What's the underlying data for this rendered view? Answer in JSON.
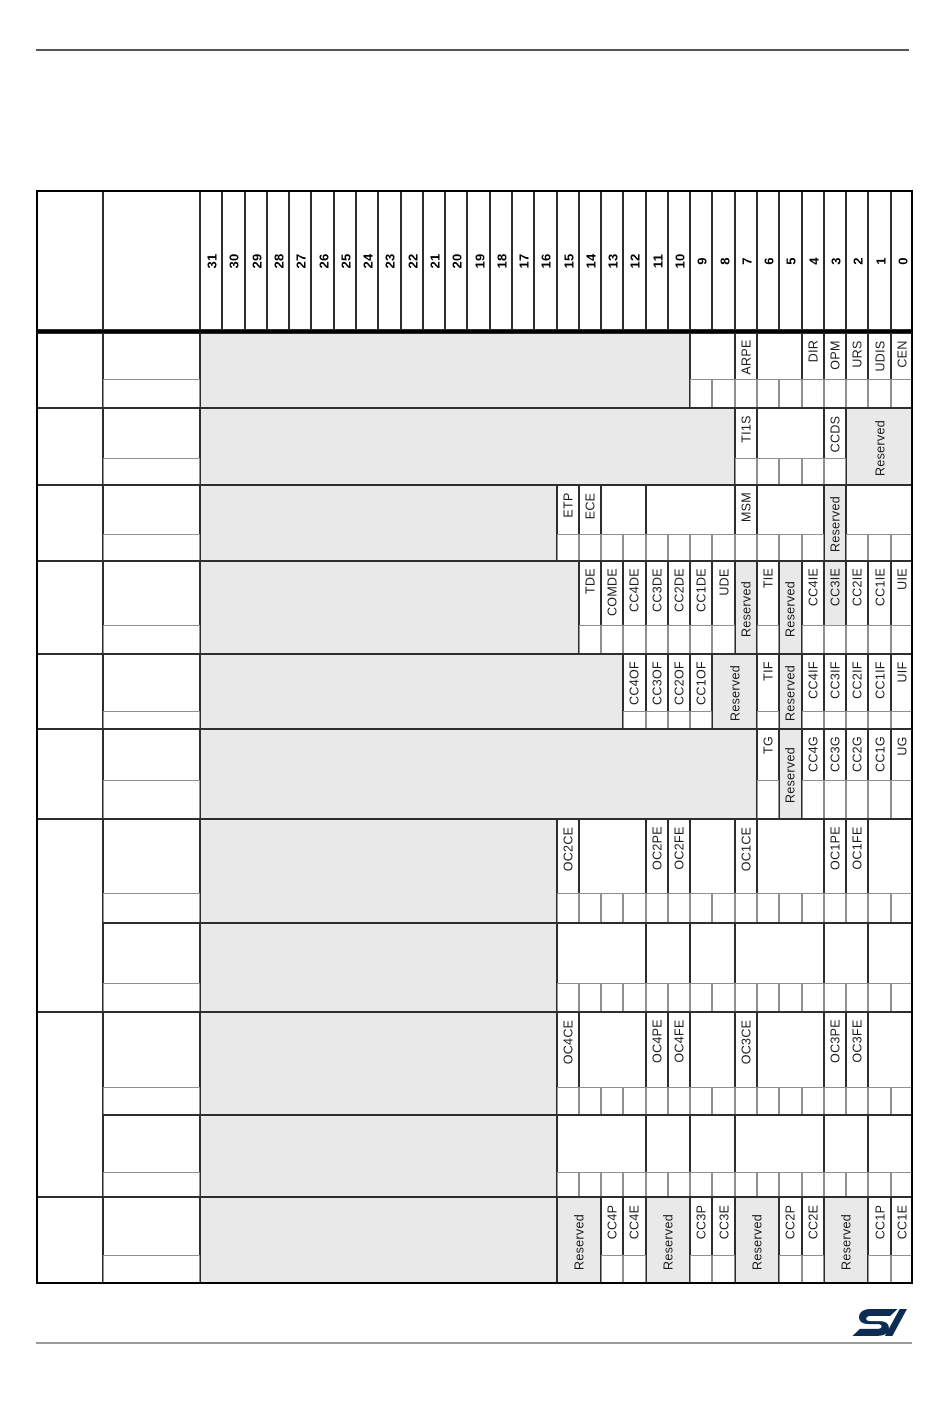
{
  "register_map": {
    "bit_header": [
      "31",
      "30",
      "29",
      "28",
      "27",
      "26",
      "25",
      "24",
      "23",
      "22",
      "21",
      "20",
      "19",
      "18",
      "17",
      "16",
      "15",
      "14",
      "13",
      "12",
      "11",
      "10",
      "9",
      "8",
      "7",
      "6",
      "5",
      "4",
      "3",
      "2",
      "1",
      "0"
    ],
    "registers": [
      {
        "fields": [
          {
            "bits": [
              31,
              10
            ],
            "label": "",
            "bg": "gray",
            "tall": true
          },
          {
            "bits": [
              9,
              8
            ],
            "label": ""
          },
          {
            "bits": [
              7,
              7
            ],
            "label": "ARPE"
          },
          {
            "bits": [
              6,
              5
            ],
            "label": ""
          },
          {
            "bits": [
              4,
              4
            ],
            "label": "DIR"
          },
          {
            "bits": [
              3,
              3
            ],
            "label": "OPM"
          },
          {
            "bits": [
              2,
              2
            ],
            "label": "URS"
          },
          {
            "bits": [
              1,
              1
            ],
            "label": "UDIS"
          },
          {
            "bits": [
              0,
              0
            ],
            "label": "CEN"
          }
        ]
      },
      {
        "fields": [
          {
            "bits": [
              31,
              8
            ],
            "label": "",
            "bg": "gray",
            "tall": true
          },
          {
            "bits": [
              7,
              7
            ],
            "label": "TI1S"
          },
          {
            "bits": [
              6,
              4
            ],
            "label": ""
          },
          {
            "bits": [
              3,
              3
            ],
            "label": "CCDS"
          },
          {
            "bits": [
              2,
              0
            ],
            "label": "Reserved",
            "bg": "gray",
            "tall": true
          }
        ]
      },
      {
        "fields": [
          {
            "bits": [
              31,
              16
            ],
            "label": "",
            "bg": "gray",
            "tall": true
          },
          {
            "bits": [
              15,
              15
            ],
            "label": "ETP"
          },
          {
            "bits": [
              14,
              14
            ],
            "label": "ECE"
          },
          {
            "bits": [
              13,
              12
            ],
            "label": ""
          },
          {
            "bits": [
              11,
              8
            ],
            "label": ""
          },
          {
            "bits": [
              7,
              7
            ],
            "label": "MSM"
          },
          {
            "bits": [
              6,
              4
            ],
            "label": ""
          },
          {
            "bits": [
              3,
              3
            ],
            "label": "Reserved",
            "bg": "gray",
            "tall": true
          },
          {
            "bits": [
              2,
              0
            ],
            "label": ""
          }
        ]
      },
      {
        "fields": [
          {
            "bits": [
              31,
              15
            ],
            "label": "",
            "bg": "gray",
            "tall": true
          },
          {
            "bits": [
              14,
              14
            ],
            "label": "TDE"
          },
          {
            "bits": [
              13,
              13
            ],
            "label": "COMDE"
          },
          {
            "bits": [
              12,
              12
            ],
            "label": "CC4DE"
          },
          {
            "bits": [
              11,
              11
            ],
            "label": "CC3DE"
          },
          {
            "bits": [
              10,
              10
            ],
            "label": "CC2DE"
          },
          {
            "bits": [
              9,
              9
            ],
            "label": "CC1DE"
          },
          {
            "bits": [
              8,
              8
            ],
            "label": "UDE"
          },
          {
            "bits": [
              7,
              7
            ],
            "label": "Reserved",
            "bg": "gray",
            "tall": true
          },
          {
            "bits": [
              6,
              6
            ],
            "label": "TIE"
          },
          {
            "bits": [
              5,
              5
            ],
            "label": "Reserved",
            "bg": "gray",
            "tall": true
          },
          {
            "bits": [
              4,
              4
            ],
            "label": "CC4IE"
          },
          {
            "bits": [
              3,
              3
            ],
            "label": "CC3IE",
            "bg": "gray"
          },
          {
            "bits": [
              2,
              2
            ],
            "label": "CC2IE"
          },
          {
            "bits": [
              1,
              1
            ],
            "label": "CC1IE"
          },
          {
            "bits": [
              0,
              0
            ],
            "label": "UIE"
          }
        ]
      },
      {
        "fields": [
          {
            "bits": [
              31,
              13
            ],
            "label": "",
            "bg": "gray",
            "tall": true
          },
          {
            "bits": [
              12,
              12
            ],
            "label": "CC4OF"
          },
          {
            "bits": [
              11,
              11
            ],
            "label": "CC3OF"
          },
          {
            "bits": [
              10,
              10
            ],
            "label": "CC2OF"
          },
          {
            "bits": [
              9,
              9
            ],
            "label": "CC1OF"
          },
          {
            "bits": [
              8,
              7
            ],
            "label": "Reserved",
            "bg": "gray",
            "tall": true
          },
          {
            "bits": [
              6,
              6
            ],
            "label": "TIF"
          },
          {
            "bits": [
              5,
              5
            ],
            "label": "Reserved",
            "bg": "gray",
            "tall": true
          },
          {
            "bits": [
              4,
              4
            ],
            "label": "CC4IF"
          },
          {
            "bits": [
              3,
              3
            ],
            "label": "CC3IF"
          },
          {
            "bits": [
              2,
              2
            ],
            "label": "CC2IF"
          },
          {
            "bits": [
              1,
              1
            ],
            "label": "CC1IF"
          },
          {
            "bits": [
              0,
              0
            ],
            "label": "UIF"
          }
        ]
      },
      {
        "fields": [
          {
            "bits": [
              31,
              7
            ],
            "label": "",
            "bg": "gray",
            "tall": true
          },
          {
            "bits": [
              6,
              6
            ],
            "label": "TG"
          },
          {
            "bits": [
              5,
              5
            ],
            "label": "Reserved",
            "bg": "gray",
            "tall": true
          },
          {
            "bits": [
              4,
              4
            ],
            "label": "CC4G"
          },
          {
            "bits": [
              3,
              3
            ],
            "label": "CC3G"
          },
          {
            "bits": [
              2,
              2
            ],
            "label": "CC2G"
          },
          {
            "bits": [
              1,
              1
            ],
            "label": "CC1G"
          },
          {
            "bits": [
              0,
              0
            ],
            "label": "UG"
          }
        ]
      },
      {
        "fields": [
          {
            "bits": [
              31,
              16
            ],
            "label": "",
            "bg": "gray",
            "tall": true
          },
          {
            "bits": [
              15,
              15
            ],
            "label": "OC2CE"
          },
          {
            "bits": [
              14,
              12
            ],
            "label": ""
          },
          {
            "bits": [
              11,
              11
            ],
            "label": "OC2PE"
          },
          {
            "bits": [
              10,
              10
            ],
            "label": "OC2FE"
          },
          {
            "bits": [
              9,
              8
            ],
            "label": ""
          },
          {
            "bits": [
              7,
              7
            ],
            "label": "OC1CE"
          },
          {
            "bits": [
              6,
              4
            ],
            "label": ""
          },
          {
            "bits": [
              3,
              3
            ],
            "label": "OC1PE"
          },
          {
            "bits": [
              2,
              2
            ],
            "label": "OC1FE"
          },
          {
            "bits": [
              1,
              0
            ],
            "label": ""
          }
        ]
      },
      {
        "fields": [
          {
            "bits": [
              31,
              16
            ],
            "label": "",
            "bg": "gray",
            "tall": true
          },
          {
            "bits": [
              15,
              12
            ],
            "label": ""
          },
          {
            "bits": [
              11,
              10
            ],
            "label": ""
          },
          {
            "bits": [
              9,
              8
            ],
            "label": ""
          },
          {
            "bits": [
              7,
              4
            ],
            "label": ""
          },
          {
            "bits": [
              3,
              2
            ],
            "label": ""
          },
          {
            "bits": [
              1,
              0
            ],
            "label": ""
          }
        ]
      },
      {
        "fields": [
          {
            "bits": [
              31,
              16
            ],
            "label": "",
            "bg": "gray",
            "tall": true
          },
          {
            "bits": [
              15,
              15
            ],
            "label": "OC4CE"
          },
          {
            "bits": [
              14,
              12
            ],
            "label": ""
          },
          {
            "bits": [
              11,
              11
            ],
            "label": "OC4PE"
          },
          {
            "bits": [
              10,
              10
            ],
            "label": "OC4FE"
          },
          {
            "bits": [
              9,
              8
            ],
            "label": ""
          },
          {
            "bits": [
              7,
              7
            ],
            "label": "OC3CE"
          },
          {
            "bits": [
              6,
              4
            ],
            "label": ""
          },
          {
            "bits": [
              3,
              3
            ],
            "label": "OC3PE"
          },
          {
            "bits": [
              2,
              2
            ],
            "label": "OC3FE"
          },
          {
            "bits": [
              1,
              0
            ],
            "label": ""
          }
        ]
      },
      {
        "fields": [
          {
            "bits": [
              31,
              16
            ],
            "label": "",
            "bg": "gray",
            "tall": true
          },
          {
            "bits": [
              15,
              12
            ],
            "label": ""
          },
          {
            "bits": [
              11,
              10
            ],
            "label": ""
          },
          {
            "bits": [
              9,
              8
            ],
            "label": ""
          },
          {
            "bits": [
              7,
              4
            ],
            "label": ""
          },
          {
            "bits": [
              3,
              2
            ],
            "label": ""
          },
          {
            "bits": [
              1,
              0
            ],
            "label": ""
          }
        ]
      },
      {
        "fields": [
          {
            "bits": [
              31,
              16
            ],
            "label": "",
            "bg": "gray",
            "tall": true
          },
          {
            "bits": [
              15,
              14
            ],
            "label": "Reserved",
            "bg": "gray",
            "tall": true
          },
          {
            "bits": [
              13,
              13
            ],
            "label": "CC4P"
          },
          {
            "bits": [
              12,
              12
            ],
            "label": "CC4E"
          },
          {
            "bits": [
              11,
              10
            ],
            "label": "Reserved",
            "bg": "gray",
            "tall": true
          },
          {
            "bits": [
              9,
              9
            ],
            "label": "CC3P"
          },
          {
            "bits": [
              8,
              8
            ],
            "label": "CC3E"
          },
          {
            "bits": [
              7,
              6
            ],
            "label": "Reserved",
            "bg": "gray",
            "tall": true
          },
          {
            "bits": [
              5,
              5
            ],
            "label": "CC2P"
          },
          {
            "bits": [
              4,
              4
            ],
            "label": "CC2E"
          },
          {
            "bits": [
              3,
              2
            ],
            "label": "Reserved",
            "bg": "gray",
            "tall": true
          },
          {
            "bits": [
              1,
              1
            ],
            "label": "CC1P"
          },
          {
            "bits": [
              0,
              0
            ],
            "label": "CC1E"
          }
        ]
      }
    ]
  },
  "branding": {
    "logo_icon": "st-logo"
  },
  "colors": {
    "reserved_fill": "#e9e9e9",
    "logo_navy": "#0c2c54"
  }
}
